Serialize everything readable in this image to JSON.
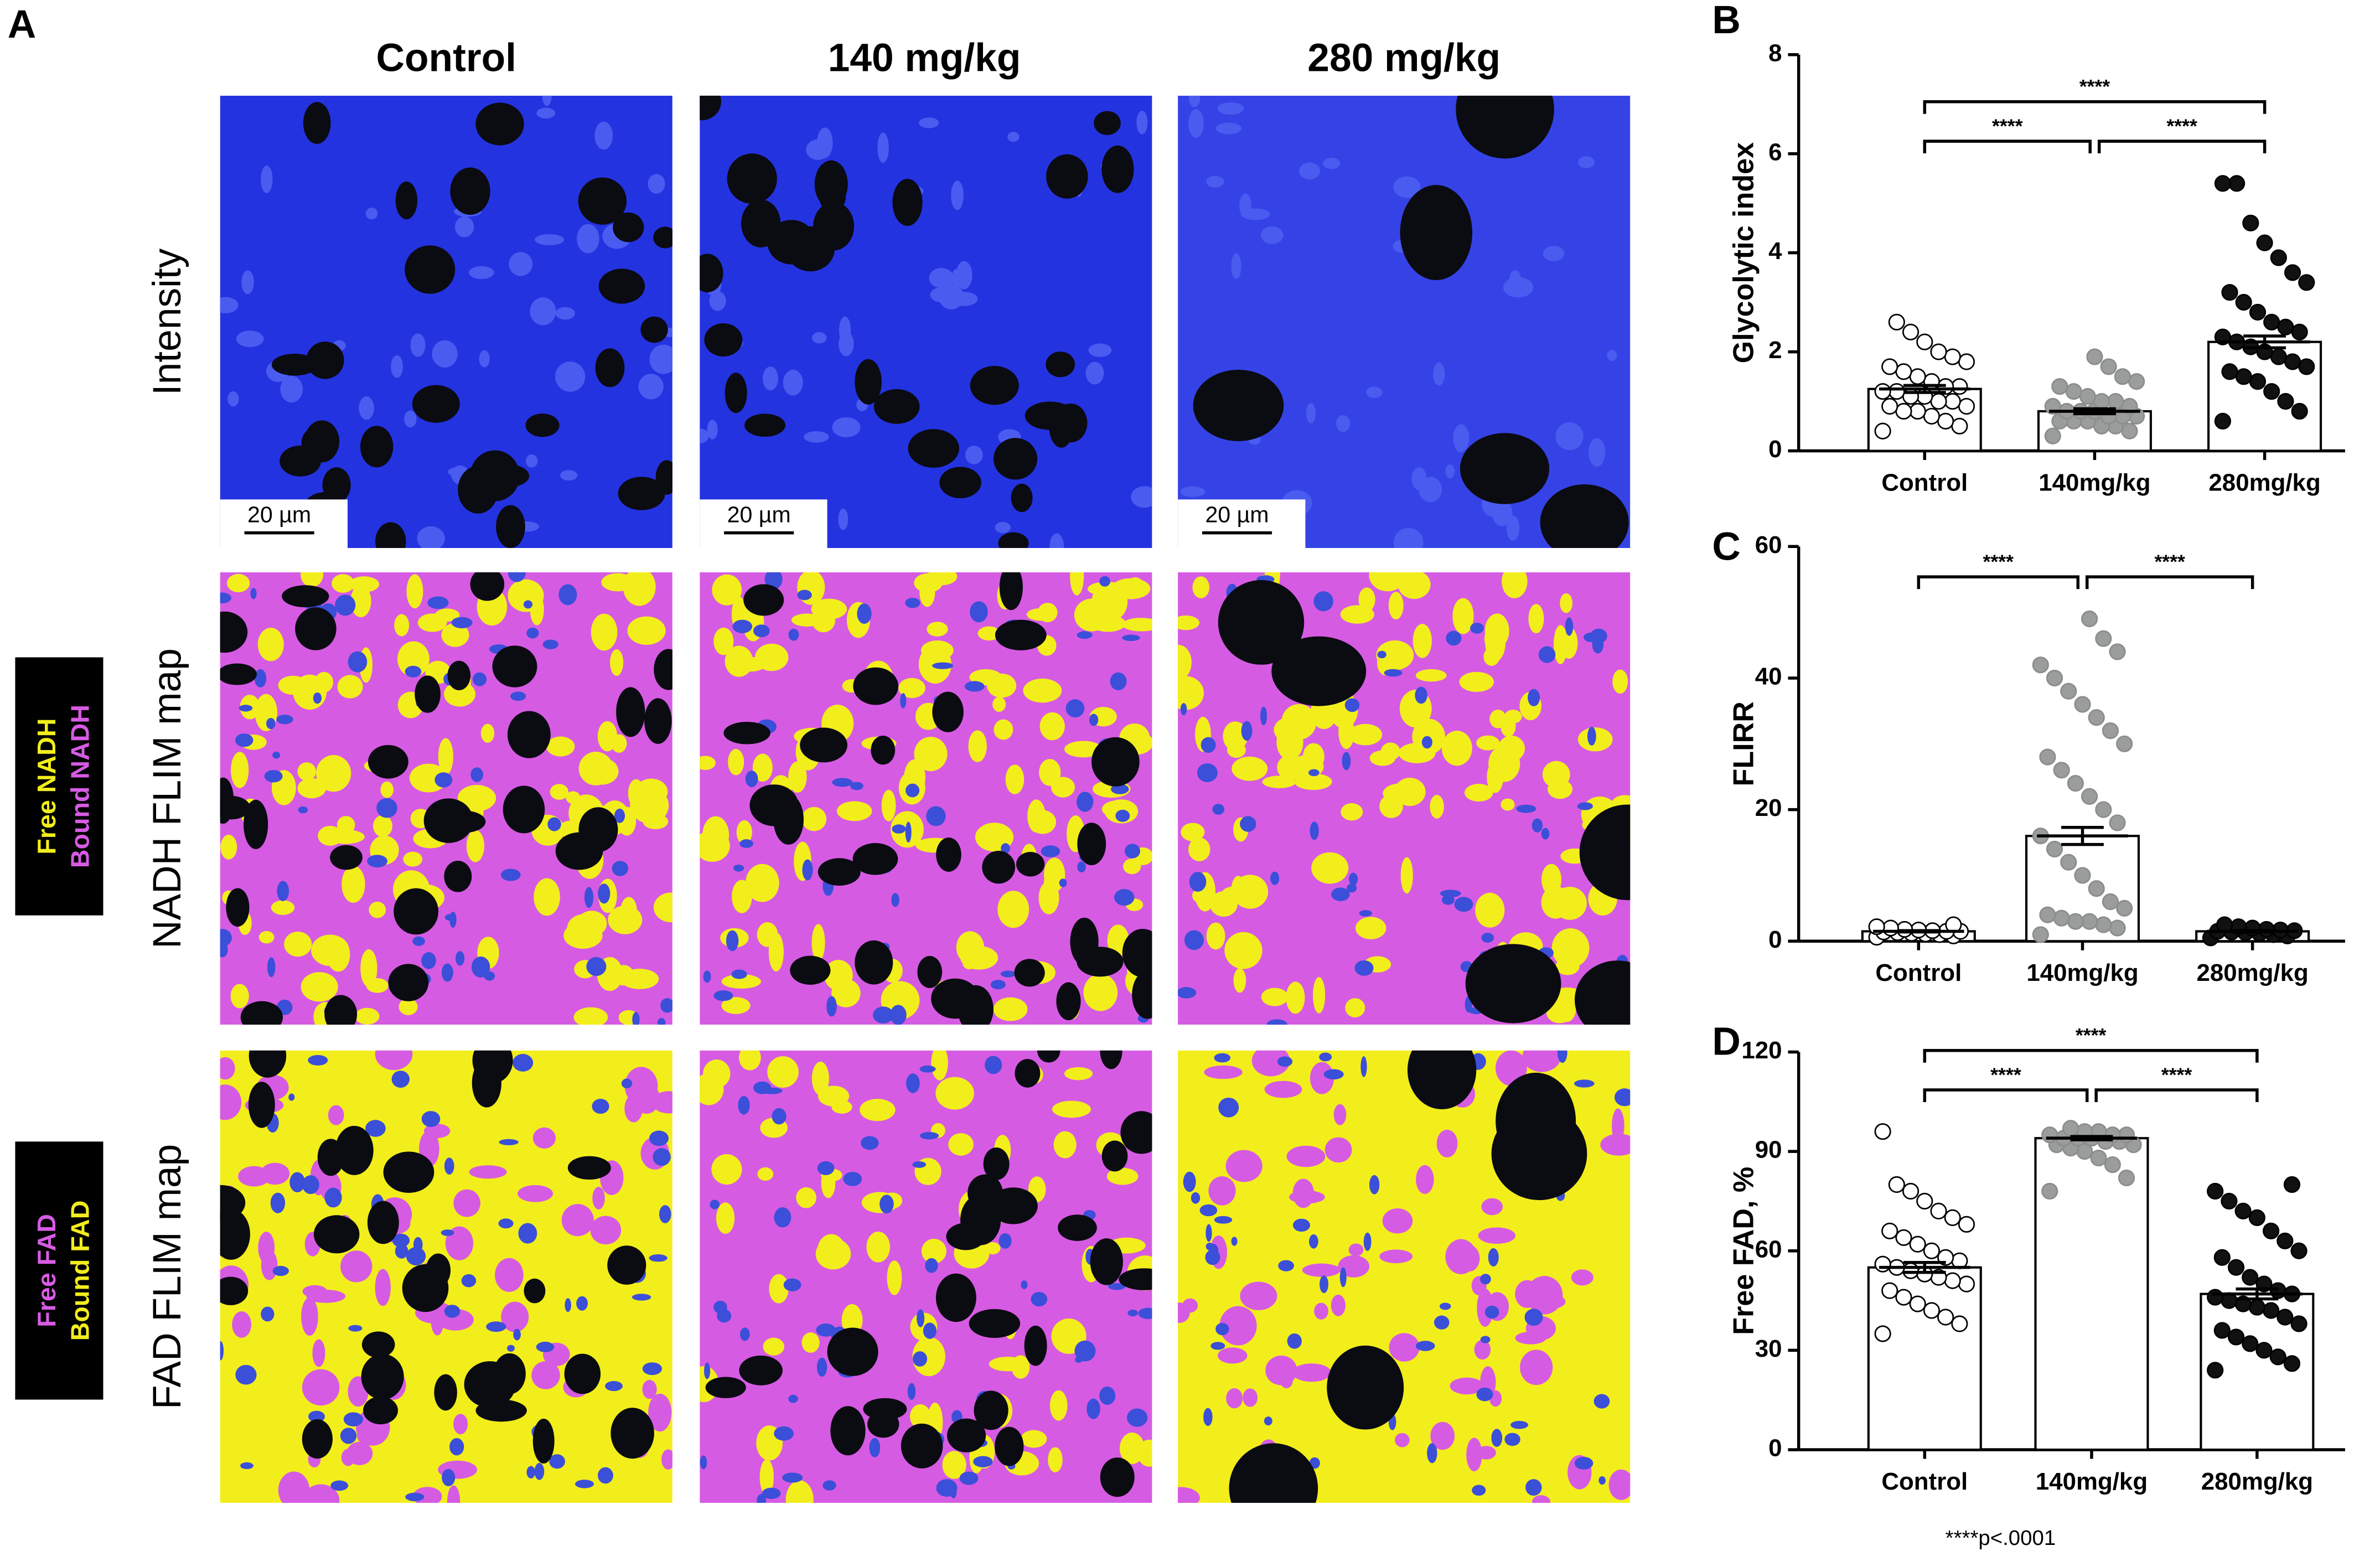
{
  "panel_a": {
    "label": "A",
    "columns": [
      "Control",
      "140 mg/kg",
      "280 mg/kg"
    ],
    "rows": [
      "Intensity",
      "NADH FLIM map",
      "FAD FLIM map"
    ],
    "scale_bar": "20 µm",
    "legends": [
      [
        "Free NADH",
        "Bound NADH"
      ],
      [
        "Free FAD",
        "Bound FAD"
      ]
    ]
  },
  "footnote": "****p<.0001",
  "chart_data": [
    {
      "type": "bar",
      "panel": "B",
      "ylabel": "Glycolytic index",
      "categories": [
        "Control",
        "140mg/kg",
        "280mg/kg"
      ],
      "values": [
        1.25,
        0.8,
        2.2
      ],
      "errors": [
        0.07,
        0.05,
        0.12
      ],
      "point_colors": [
        "#ffffff",
        "#9a9d9c",
        "#111111"
      ],
      "points": [
        [
          0.4,
          0.5,
          0.6,
          0.7,
          0.8,
          0.8,
          0.9,
          0.9,
          1.0,
          1.0,
          1.1,
          1.1,
          1.2,
          1.2,
          1.3,
          1.3,
          1.4,
          1.5,
          1.6,
          1.7,
          1.8,
          1.9,
          2.0,
          2.2,
          2.4,
          2.6
        ],
        [
          0.3,
          0.4,
          0.5,
          0.5,
          0.6,
          0.6,
          0.6,
          0.7,
          0.7,
          0.7,
          0.8,
          0.8,
          0.8,
          0.9,
          0.9,
          1.0,
          1.0,
          1.1,
          1.2,
          1.3,
          1.4,
          1.5,
          1.7,
          1.9
        ],
        [
          0.6,
          0.8,
          1.0,
          1.2,
          1.4,
          1.5,
          1.6,
          1.7,
          1.8,
          1.9,
          2.0,
          2.1,
          2.2,
          2.3,
          2.4,
          2.5,
          2.6,
          2.8,
          3.0,
          3.2,
          3.4,
          3.6,
          3.9,
          4.2,
          4.6,
          5.4,
          5.4
        ]
      ],
      "ylim": [
        0,
        8
      ],
      "yticks": [
        0,
        2,
        4,
        6,
        8
      ],
      "significance": [
        {
          "pair": [
            "Control",
            "140mg/kg"
          ],
          "label": "****"
        },
        {
          "pair": [
            "140mg/kg",
            "280mg/kg"
          ],
          "label": "****"
        },
        {
          "pair": [
            "Control",
            "280mg/kg"
          ],
          "label": "****"
        }
      ]
    },
    {
      "type": "bar",
      "panel": "C",
      "ylabel": "FLIRR",
      "categories": [
        "Control",
        "140mg/kg",
        "280mg/kg"
      ],
      "values": [
        1.5,
        16,
        1.5
      ],
      "errors": [
        0.1,
        1.3,
        0.1
      ],
      "point_colors": [
        "#ffffff",
        "#9a9d9c",
        "#111111"
      ],
      "points": [
        [
          0.6,
          0.8,
          1.0,
          1.1,
          1.2,
          1.3,
          1.4,
          1.5,
          1.5,
          1.6,
          1.7,
          1.8,
          2.0,
          2.2,
          2.5
        ],
        [
          1,
          2,
          2.5,
          3,
          3,
          3.5,
          4,
          5,
          6,
          8,
          10,
          12,
          14,
          16,
          18,
          20,
          22,
          24,
          26,
          28,
          30,
          32,
          34,
          36,
          38,
          40,
          42,
          44,
          46,
          49
        ],
        [
          0.5,
          0.8,
          1.0,
          1.2,
          1.3,
          1.4,
          1.5,
          1.6,
          1.7,
          1.8,
          2.0,
          2.2,
          2.5
        ]
      ],
      "ylim": [
        0,
        60
      ],
      "yticks": [
        0,
        20,
        40,
        60
      ],
      "significance": [
        {
          "pair": [
            "Control",
            "140mg/kg"
          ],
          "label": "****"
        },
        {
          "pair": [
            "140mg/kg",
            "280mg/kg"
          ],
          "label": "****"
        }
      ]
    },
    {
      "type": "bar",
      "panel": "D",
      "ylabel": "Free FAD, %",
      "categories": [
        "Control",
        "140mg/kg",
        "280mg/kg"
      ],
      "values": [
        55,
        94,
        47
      ],
      "errors": [
        1.5,
        0.5,
        1.5
      ],
      "point_colors": [
        "#ffffff",
        "#9a9d9c",
        "#111111"
      ],
      "points": [
        [
          35,
          38,
          40,
          42,
          44,
          46,
          48,
          50,
          51,
          52,
          53,
          54,
          55,
          56,
          57,
          58,
          60,
          62,
          64,
          66,
          68,
          70,
          72,
          75,
          78,
          80,
          96
        ],
        [
          78,
          82,
          86,
          88,
          90,
          91,
          92,
          92,
          93,
          93,
          94,
          94,
          94,
          95,
          95,
          95,
          96,
          96,
          97
        ],
        [
          24,
          26,
          28,
          30,
          32,
          34,
          36,
          38,
          40,
          42,
          43,
          44,
          45,
          46,
          47,
          48,
          50,
          52,
          55,
          58,
          60,
          63,
          66,
          70,
          72,
          75,
          78,
          80
        ]
      ],
      "ylim": [
        0,
        120
      ],
      "yticks": [
        0,
        30,
        60,
        90,
        120
      ],
      "significance": [
        {
          "pair": [
            "Control",
            "140mg/kg"
          ],
          "label": "****"
        },
        {
          "pair": [
            "140mg/kg",
            "280mg/kg"
          ],
          "label": "****"
        },
        {
          "pair": [
            "Control",
            "280mg/kg"
          ],
          "label": "****"
        }
      ]
    }
  ]
}
